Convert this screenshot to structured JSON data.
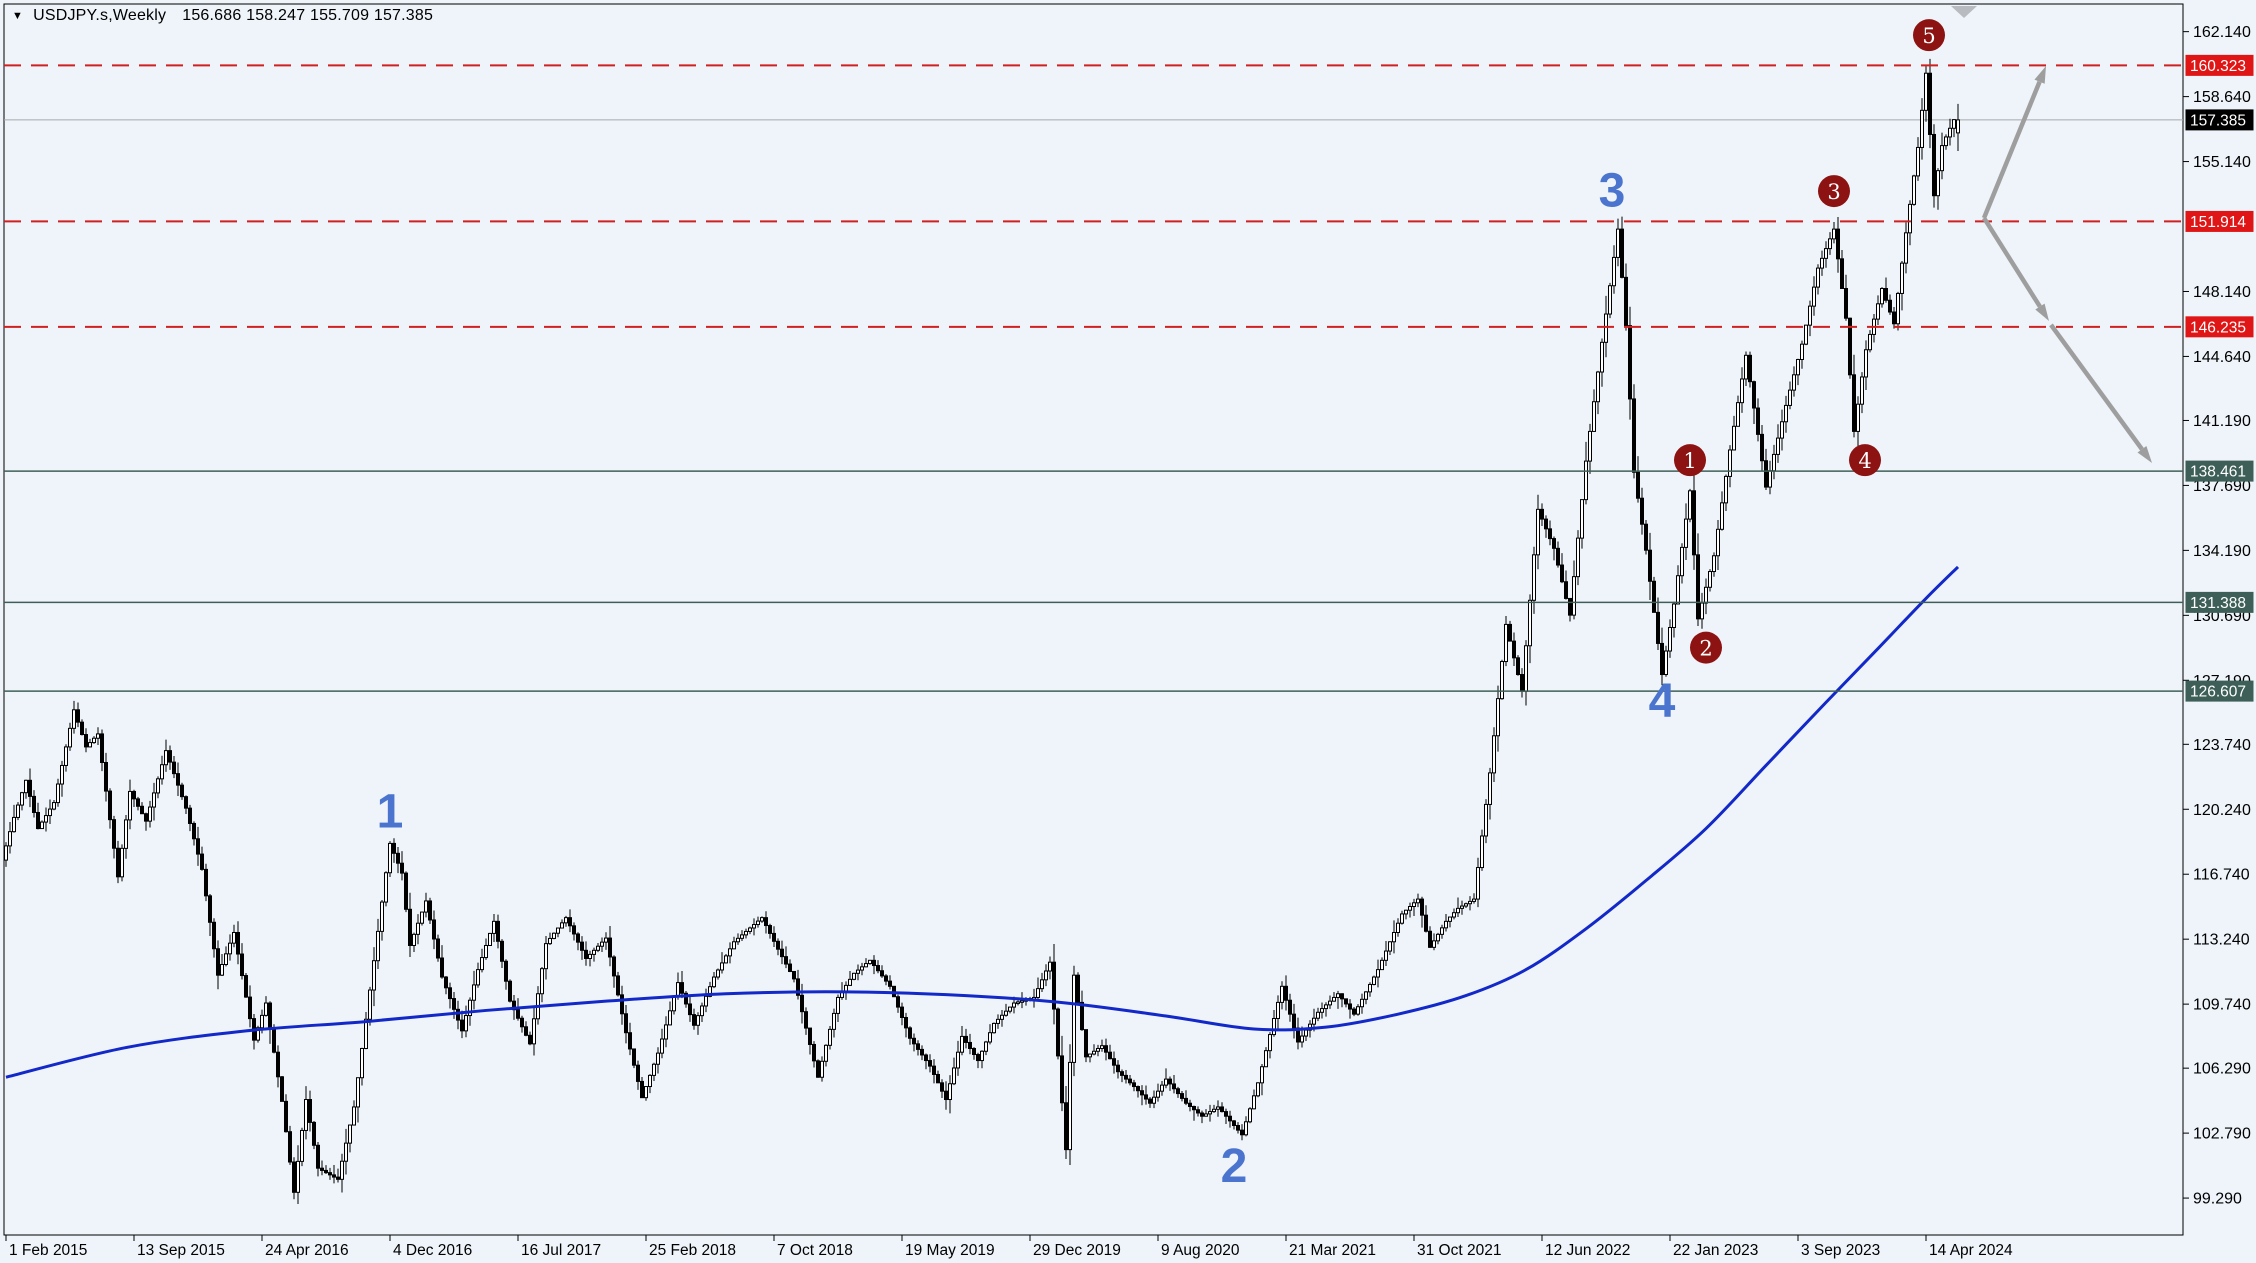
{
  "window": {
    "title_symbol": "USDJPY.s,Weekly",
    "title_ohlc": "156.686 158.247 155.709 157.385"
  },
  "colors": {
    "background": "#eef4fa",
    "frame": "#000000",
    "axis_text": "#000000",
    "candle_up_fill": "#ffffff",
    "candle_down_fill": "#000000",
    "candle_outline": "#000000",
    "ma_line": "#1228c8",
    "resistance_line": "#d02020",
    "resistance_label_bg": "#e01515",
    "support_line": "#3e5f58",
    "support_label_bg": "#3e5f58",
    "current_price_line": "#a9a9a9",
    "current_price_label_bg": "#000000",
    "label_text": "#ffffff",
    "wave_text": "#4a74ce",
    "wave_circle_fill": "#8d1212",
    "wave_circle_text": "#ffffff",
    "arrow": "#9e9e9e",
    "top_marker": "#b8bcc0"
  },
  "chart_data": {
    "type": "candlestick",
    "symbol": "USDJPY.s",
    "timeframe": "Weekly",
    "current_bar": {
      "open": 156.686,
      "high": 158.247,
      "low": 155.709,
      "close": 157.385
    },
    "ylim": [
      97.3,
      163.63
    ],
    "y_ticks": [
      162.14,
      158.64,
      155.14,
      148.14,
      144.64,
      141.19,
      137.69,
      134.19,
      130.69,
      127.19,
      123.74,
      120.24,
      116.74,
      113.24,
      109.74,
      106.29,
      102.79,
      99.29
    ],
    "x_ticks": [
      "1 Feb 2015",
      "13 Sep 2015",
      "24 Apr 2016",
      "4 Dec 2016",
      "16 Jul 2017",
      "25 Feb 2018",
      "7 Oct 2018",
      "19 May 2019",
      "29 Dec 2019",
      "9 Aug 2020",
      "21 Mar 2021",
      "31 Oct 2021",
      "12 Jun 2022",
      "22 Jan 2023",
      "3 Sep 2023",
      "14 Apr 2024"
    ],
    "weeks_per_x_tick": 32,
    "levels": {
      "resistance": [
        160.323,
        151.914,
        146.235
      ],
      "support": [
        138.461,
        131.388,
        126.607
      ],
      "current_price": 157.385
    },
    "waves": {
      "blue": [
        {
          "label": "1",
          "week": 96,
          "price": 120.1
        },
        {
          "label": "2",
          "week": 307,
          "price": 101.0
        },
        {
          "label": "3",
          "week": 401.5,
          "price": 153.55
        },
        {
          "label": "4",
          "week": 414,
          "price": 126.05
        }
      ],
      "circled": [
        {
          "label": "1",
          "week": 421,
          "price": 139.05
        },
        {
          "label": "2",
          "week": 425,
          "price": 128.95
        },
        {
          "label": "3",
          "week": 457,
          "price": 153.55
        },
        {
          "label": "4",
          "week": 464.75,
          "price": 139.05
        },
        {
          "label": "5",
          "week": 480.75,
          "price": 161.95
        }
      ]
    },
    "projection_arrows": [
      {
        "from_week": 494.5,
        "from_price": 152.1,
        "to_week": 510.0,
        "to_price": 160.29
      },
      {
        "from_week": 494.5,
        "from_price": 152.1,
        "to_week": 510.75,
        "to_price": 146.55
      },
      {
        "from_week": 511.25,
        "from_price": 146.34,
        "to_week": 536.5,
        "to_price": 138.9
      }
    ],
    "price_path": [
      [
        0,
        117.5
      ],
      [
        3,
        119.8
      ],
      [
        6,
        121.8
      ],
      [
        9,
        119.2
      ],
      [
        13,
        120.6
      ],
      [
        18,
        125.6
      ],
      [
        21,
        123.6
      ],
      [
        24,
        124.3
      ],
      [
        29,
        116.6
      ],
      [
        32,
        121.2
      ],
      [
        36,
        119.6
      ],
      [
        41,
        123.4
      ],
      [
        46,
        120.3
      ],
      [
        50,
        117.0
      ],
      [
        54,
        111.3
      ],
      [
        58,
        113.6
      ],
      [
        63,
        107.8
      ],
      [
        66,
        109.8
      ],
      [
        70,
        104.5
      ],
      [
        73,
        99.6
      ],
      [
        76,
        104.6
      ],
      [
        79,
        100.9
      ],
      [
        84,
        100.3
      ],
      [
        88,
        104.2
      ],
      [
        92,
        110.5
      ],
      [
        97,
        118.4
      ],
      [
        100,
        116.8
      ],
      [
        102,
        112.9
      ],
      [
        106,
        115.3
      ],
      [
        110,
        111.2
      ],
      [
        115,
        108.3
      ],
      [
        119,
        111.6
      ],
      [
        123,
        114.2
      ],
      [
        127,
        109.9
      ],
      [
        132,
        107.6
      ],
      [
        136,
        113.0
      ],
      [
        141,
        114.4
      ],
      [
        146,
        112.2
      ],
      [
        151,
        113.3
      ],
      [
        156,
        108.2
      ],
      [
        160,
        104.7
      ],
      [
        164,
        107.1
      ],
      [
        169,
        110.9
      ],
      [
        173,
        108.6
      ],
      [
        178,
        111.2
      ],
      [
        183,
        113.1
      ],
      [
        190,
        114.4
      ],
      [
        194,
        112.7
      ],
      [
        198,
        111.1
      ],
      [
        204,
        105.8
      ],
      [
        209,
        110.1
      ],
      [
        213,
        111.4
      ],
      [
        217,
        112.1
      ],
      [
        222,
        110.7
      ],
      [
        227,
        107.9
      ],
      [
        232,
        106.4
      ],
      [
        236,
        104.6
      ],
      [
        240,
        108.0
      ],
      [
        244,
        106.7
      ],
      [
        248,
        108.7
      ],
      [
        253,
        109.8
      ],
      [
        258,
        110.1
      ],
      [
        262,
        112.0
      ],
      [
        266,
        101.9
      ],
      [
        268,
        111.3
      ],
      [
        271,
        106.9
      ],
      [
        275,
        107.5
      ],
      [
        279,
        106.1
      ],
      [
        283,
        105.3
      ],
      [
        287,
        104.4
      ],
      [
        291,
        105.7
      ],
      [
        296,
        104.4
      ],
      [
        300,
        103.7
      ],
      [
        304,
        104.2
      ],
      [
        310,
        102.7
      ],
      [
        314,
        105.5
      ],
      [
        320,
        110.7
      ],
      [
        324,
        107.7
      ],
      [
        329,
        109.3
      ],
      [
        334,
        110.3
      ],
      [
        338,
        109.2
      ],
      [
        344,
        111.6
      ],
      [
        350,
        114.6
      ],
      [
        354,
        115.4
      ],
      [
        357,
        112.8
      ],
      [
        361,
        114.2
      ],
      [
        364,
        114.9
      ],
      [
        368,
        115.4
      ],
      [
        372,
        122.2
      ],
      [
        376,
        130.2
      ],
      [
        380,
        126.6
      ],
      [
        384,
        136.4
      ],
      [
        388,
        134.3
      ],
      [
        392,
        130.7
      ],
      [
        396,
        139.0
      ],
      [
        400,
        145.4
      ],
      [
        404,
        151.5
      ],
      [
        406,
        146.3
      ],
      [
        408,
        138.4
      ],
      [
        411,
        134.2
      ],
      [
        415,
        127.5
      ],
      [
        418,
        131.3
      ],
      [
        422,
        137.4
      ],
      [
        424,
        130.5
      ],
      [
        428,
        133.9
      ],
      [
        432,
        139.6
      ],
      [
        436,
        144.7
      ],
      [
        441,
        137.6
      ],
      [
        446,
        142.0
      ],
      [
        450,
        145.3
      ],
      [
        454,
        149.4
      ],
      [
        458,
        151.5
      ],
      [
        461,
        146.7
      ],
      [
        463,
        140.6
      ],
      [
        466,
        145.0
      ],
      [
        470,
        148.3
      ],
      [
        473,
        146.4
      ],
      [
        476,
        151.3
      ],
      [
        479,
        155.9
      ],
      [
        481,
        159.9
      ],
      [
        483,
        153.3
      ],
      [
        485,
        156.0
      ],
      [
        488,
        157.4
      ]
    ],
    "ma_path": [
      [
        0,
        105.8
      ],
      [
        30,
        107.4
      ],
      [
        60,
        108.3
      ],
      [
        90,
        108.8
      ],
      [
        120,
        109.4
      ],
      [
        150,
        109.9
      ],
      [
        180,
        110.3
      ],
      [
        210,
        110.4
      ],
      [
        240,
        110.2
      ],
      [
        265,
        109.8
      ],
      [
        290,
        109.1
      ],
      [
        312,
        108.4
      ],
      [
        330,
        108.5
      ],
      [
        348,
        109.2
      ],
      [
        365,
        110.2
      ],
      [
        380,
        111.6
      ],
      [
        395,
        113.8
      ],
      [
        410,
        116.4
      ],
      [
        425,
        119.2
      ],
      [
        440,
        122.6
      ],
      [
        455,
        126.0
      ],
      [
        468,
        128.9
      ],
      [
        480,
        131.6
      ],
      [
        488,
        133.3
      ]
    ]
  }
}
